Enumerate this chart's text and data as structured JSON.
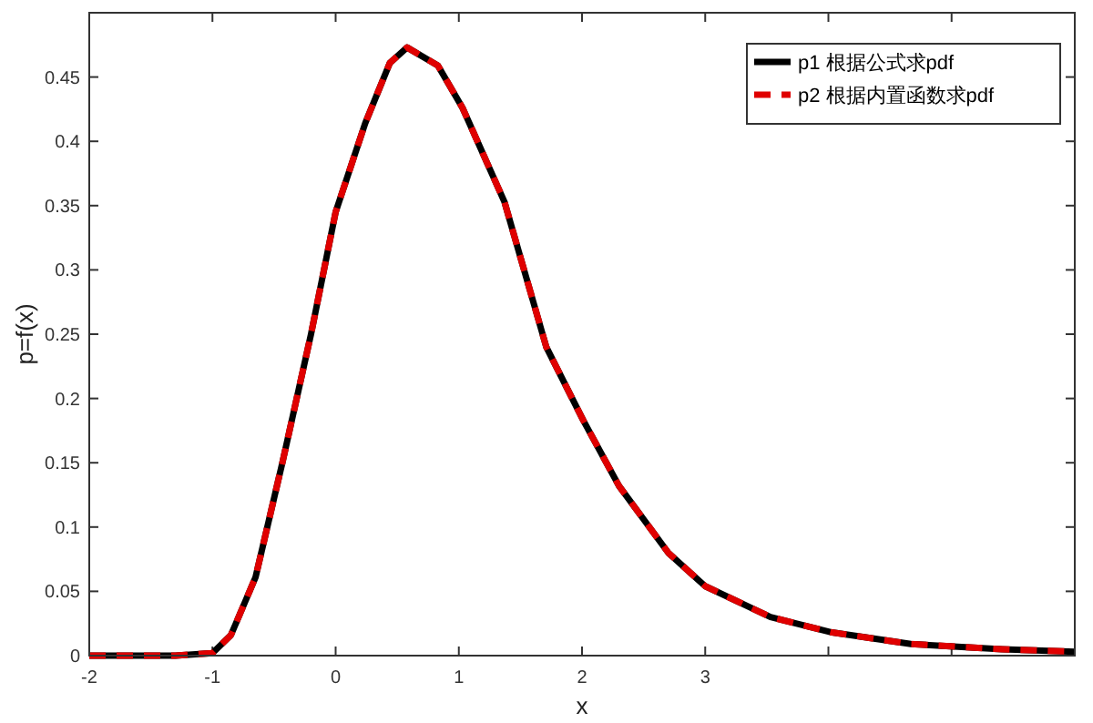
{
  "chart_data": {
    "type": "line",
    "xlabel": "x",
    "ylabel": "p=f(x)",
    "x": [
      -2,
      -1.6,
      -1.3,
      -1.0,
      -0.85,
      -0.65,
      -0.43,
      -0.2,
      0,
      0.24,
      0.44,
      0.58,
      0.83,
      1.03,
      1.37,
      1.71,
      2.01,
      2.3,
      2.7,
      3.0,
      3.53,
      4.03,
      4.67,
      5.41,
      6.0
    ],
    "series": [
      {
        "name": "p1 根据公式求pdf",
        "color": "#000000",
        "line_style": "solid",
        "values": [
          0,
          0,
          0,
          0.002,
          0.016,
          0.061,
          0.151,
          0.25,
          0.345,
          0.414,
          0.461,
          0.473,
          0.459,
          0.426,
          0.353,
          0.24,
          0.183,
          0.132,
          0.08,
          0.054,
          0.03,
          0.018,
          0.009,
          0.005,
          0.003
        ]
      },
      {
        "name": "p2 根据内置函数求pdf",
        "color": "#e00000",
        "line_style": "dashed",
        "values": [
          0,
          0,
          0,
          0.002,
          0.016,
          0.061,
          0.151,
          0.25,
          0.345,
          0.414,
          0.461,
          0.473,
          0.459,
          0.426,
          0.353,
          0.24,
          0.183,
          0.132,
          0.08,
          0.054,
          0.03,
          0.018,
          0.009,
          0.005,
          0.003
        ]
      }
    ],
    "xlim": [
      -2,
      6
    ],
    "xticks": [
      -2,
      -1,
      0,
      1,
      2,
      3,
      {
        "value": 4,
        "label": null
      },
      {
        "value": 5,
        "label": null
      },
      {
        "value": 6,
        "label": null
      }
    ],
    "ylim": [
      0,
      0.5
    ],
    "yticks": [
      0,
      0.05,
      0.1,
      0.15,
      0.2,
      0.25,
      0.3,
      0.35,
      0.4,
      0.45
    ],
    "grid": false,
    "legend": "top right"
  }
}
